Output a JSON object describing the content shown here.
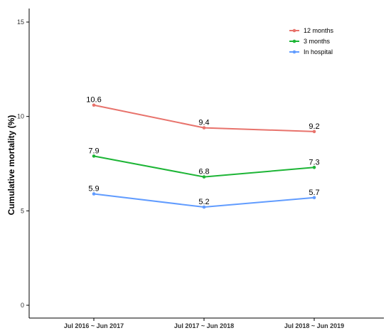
{
  "chart_data": {
    "type": "line",
    "title": "",
    "xlabel": "",
    "ylabel": "Cumulative mortality (%)",
    "categories": [
      "Jul 2016 ~ Jun 2017",
      "Jul 2017 ~ Jun 2018",
      "Jul 2018 ~ Jun 2019"
    ],
    "ylim": [
      0,
      15
    ],
    "yticks": [
      0,
      5,
      10,
      15
    ],
    "grid": false,
    "legend_position": "top-right",
    "series": [
      {
        "name": "12 months",
        "color": "#E8736C",
        "values": [
          10.6,
          9.4,
          9.2
        ],
        "labels": [
          "10.6",
          "9.4",
          "9.2"
        ]
      },
      {
        "name": "3 months",
        "color": "#1DB536",
        "values": [
          7.9,
          6.8,
          7.3
        ],
        "labels": [
          "7.9",
          "6.8",
          "7.3"
        ]
      },
      {
        "name": "In hospital",
        "color": "#619CFF",
        "values": [
          5.9,
          5.2,
          5.7
        ],
        "labels": [
          "5.9",
          "5.2",
          "5.7"
        ]
      }
    ]
  }
}
